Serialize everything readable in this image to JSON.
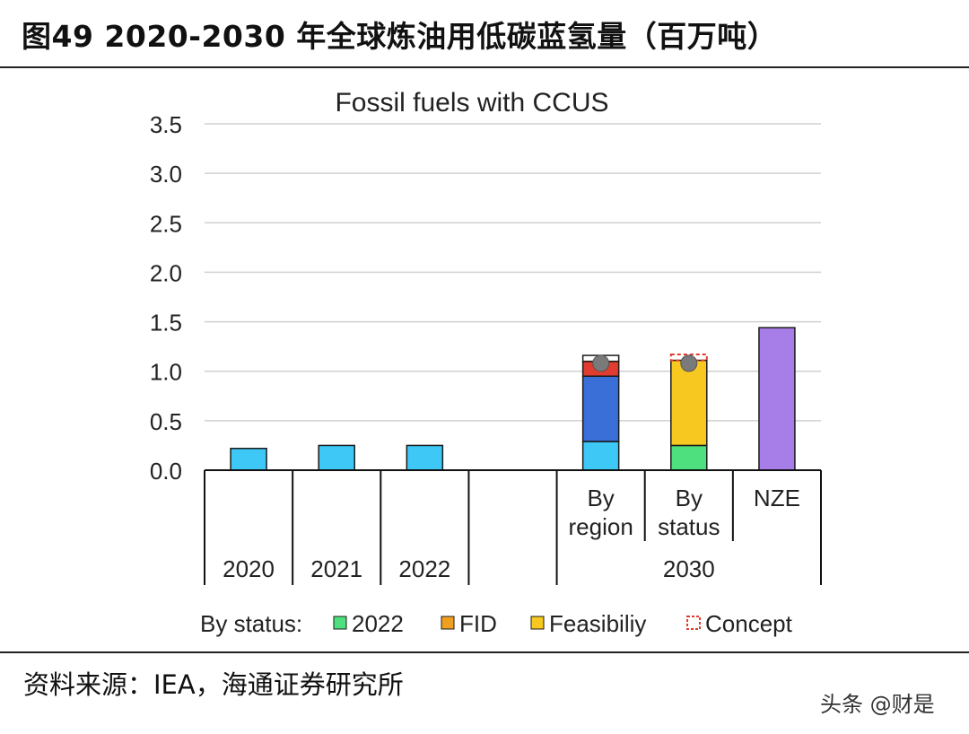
{
  "figure_title": "图49 2020-2030 年全球炼油用低碳蓝氢量（百万吨）",
  "source": "资料来源：IEA，海通证券研究所",
  "watermark": "头条 @财是",
  "colors": {
    "sky": "#3ec8f5",
    "blue": "#3a6fd8",
    "red": "#e03c2f",
    "green": "#4ee07e",
    "fid": "#f0a020",
    "yellow": "#f7c81f",
    "purple": "#a77de8",
    "concept": "#e03c2f",
    "marker": "#7a7a7a",
    "grid": "#d0d0d0"
  },
  "chart_data": {
    "type": "bar",
    "stacked": true,
    "title": "Fossil fuels with CCUS",
    "ylim": [
      0,
      3.5
    ],
    "yticks": [
      "0.0",
      "0.5",
      "1.0",
      "1.5",
      "2.0",
      "2.5",
      "3.0",
      "3.5"
    ],
    "grid": true,
    "categories": [
      "2020",
      "2021",
      "2022",
      "",
      "By region",
      "By status",
      "NZE"
    ],
    "category_label_lines": [
      [],
      [],
      [],
      [],
      [
        "By",
        "region"
      ],
      [
        "By",
        "status"
      ],
      [
        "NZE"
      ]
    ],
    "groups": [
      {
        "label": "2020",
        "span": [
          0,
          0
        ]
      },
      {
        "label": "2021",
        "span": [
          1,
          1
        ]
      },
      {
        "label": "2022",
        "span": [
          2,
          2
        ]
      },
      {
        "label": "",
        "span": [
          3,
          3
        ]
      },
      {
        "label": "2030",
        "span": [
          4,
          6
        ]
      }
    ],
    "bars": [
      {
        "category": "2020",
        "segments": [
          {
            "color": "sky",
            "value": 0.22
          }
        ]
      },
      {
        "category": "2021",
        "segments": [
          {
            "color": "sky",
            "value": 0.25
          }
        ]
      },
      {
        "category": "2022",
        "segments": [
          {
            "color": "sky",
            "value": 0.25
          }
        ]
      },
      {
        "category": "",
        "segments": []
      },
      {
        "category": "By region",
        "segments": [
          {
            "color": "sky",
            "value": 0.29
          },
          {
            "color": "blue",
            "value": 0.66
          },
          {
            "color": "red",
            "value": 0.15
          },
          {
            "color": "white",
            "value": 0.06
          }
        ],
        "marker": 1.08
      },
      {
        "category": "By status",
        "segments": [
          {
            "color": "green",
            "value": 0.25
          },
          {
            "color": "yellow",
            "value": 0.86
          },
          {
            "color": "concept-hatch",
            "value": 0.06
          }
        ],
        "marker": 1.08
      },
      {
        "category": "NZE",
        "segments": [
          {
            "color": "purple",
            "value": 1.44
          }
        ]
      }
    ],
    "legend": {
      "placement": "bottom",
      "prefix": "By status:",
      "entries": [
        {
          "label": "2022",
          "color": "green"
        },
        {
          "label": "FID",
          "color": "fid"
        },
        {
          "label": "Feasibiliy",
          "color": "yellow"
        },
        {
          "label": "Concept",
          "color": "concept",
          "dashed": true
        }
      ]
    }
  }
}
